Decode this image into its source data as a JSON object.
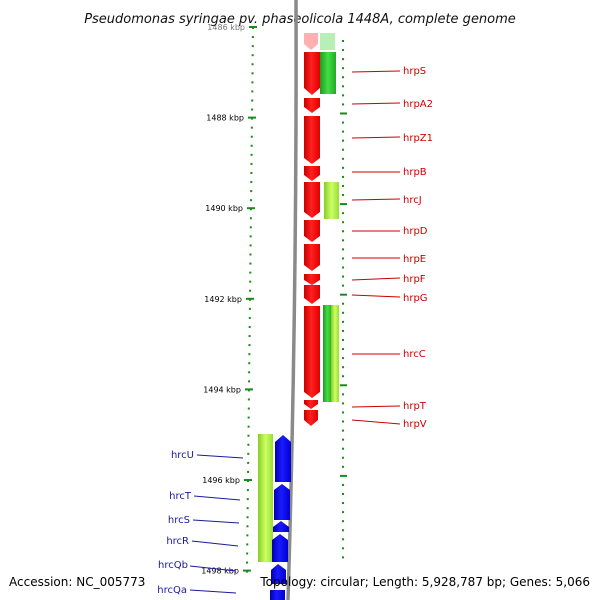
{
  "title": "Pseudomonas syringae pv. phaseolicola 1448A, complete genome",
  "accession": "Accession: NC_005773",
  "topology": "Topology: circular; Length: 5,928,787 bp; Genes: 5,066",
  "scale_labels": [
    {
      "kbp": 1486,
      "text": "1486 kbp"
    },
    {
      "kbp": 1488,
      "text": "1488 kbp"
    },
    {
      "kbp": 1490,
      "text": "1490 kbp"
    },
    {
      "kbp": 1492,
      "text": "1492 kbp"
    },
    {
      "kbp": 1494,
      "text": "1494 kbp"
    },
    {
      "kbp": 1496,
      "text": "1496 kbp"
    },
    {
      "kbp": 1498,
      "text": "1498 kbp"
    }
  ],
  "genes_right": [
    {
      "name": "hrpS",
      "color": "#cc0000"
    },
    {
      "name": "hrpA2",
      "color": "#cc0000"
    },
    {
      "name": "hrpZ1",
      "color": "#cc0000"
    },
    {
      "name": "hrpB",
      "color": "#cc0000"
    },
    {
      "name": "hrcJ",
      "color": "#cc0000"
    },
    {
      "name": "hrpD",
      "color": "#cc0000"
    },
    {
      "name": "hrpE",
      "color": "#cc0000"
    },
    {
      "name": "hrpF",
      "color": "#cc0000"
    },
    {
      "name": "hrpG",
      "color": "#cc0000"
    },
    {
      "name": "hrcC",
      "color": "#cc0000"
    },
    {
      "name": "hrpT",
      "color": "#cc0000"
    },
    {
      "name": "hrpV",
      "color": "#cc0000"
    }
  ],
  "genes_left": [
    {
      "name": "hrcU",
      "color": "#1a1a9e"
    },
    {
      "name": "hrcT",
      "color": "#1a1a9e"
    },
    {
      "name": "hrcS",
      "color": "#1a1a9e"
    },
    {
      "name": "hrcR",
      "color": "#1a1a9e"
    },
    {
      "name": "hrcQb",
      "color": "#1a1a9e"
    },
    {
      "name": "hrcQa",
      "color": "#1a1a9e"
    }
  ],
  "colors": {
    "cds_red": "#ff1a1a",
    "cds_blue": "#0000ee",
    "green": "#33cc33",
    "light_green": "#aaee44",
    "backbone": "#888888",
    "tick_green": "#1a8a1a"
  }
}
